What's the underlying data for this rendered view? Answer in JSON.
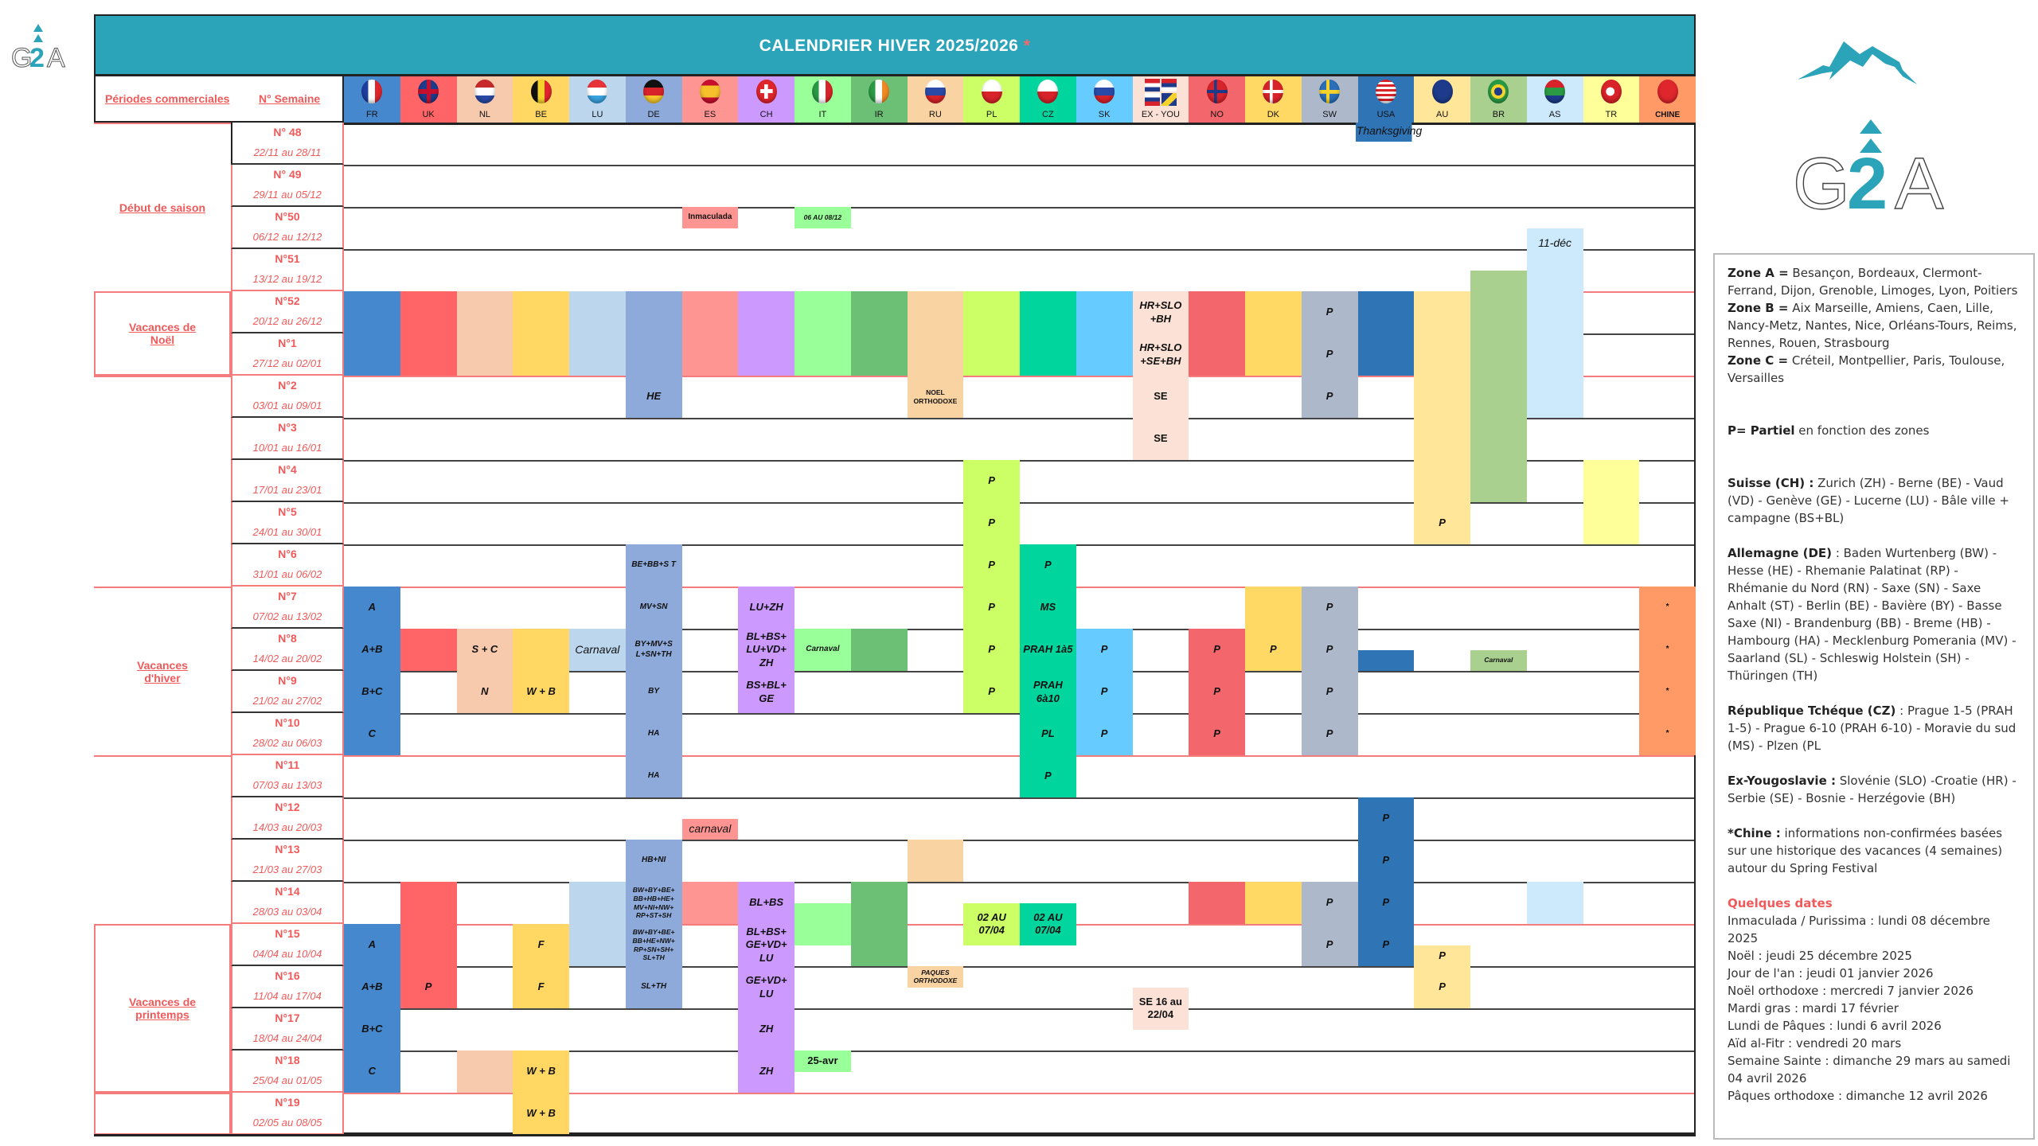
{
  "title": "CALENDRIER HIVER 2025/2026",
  "title_star": "*",
  "header": {
    "periods_label": "Périodes commerciales",
    "week_label": "N°  Semaine"
  },
  "logo_text": "G2A",
  "columns": [
    {
      "code": "FR",
      "color": "#4588cd"
    },
    {
      "code": "UK",
      "color": "#ff6566"
    },
    {
      "code": "NL",
      "color": "#f7c9ad"
    },
    {
      "code": "BE",
      "color": "#ffd762"
    },
    {
      "code": "LU",
      "color": "#bcd6ee"
    },
    {
      "code": "DE",
      "color": "#8eaadb"
    },
    {
      "code": "ES",
      "color": "#ff9592"
    },
    {
      "code": "CH",
      "color": "#cc99ff"
    },
    {
      "code": "IT",
      "color": "#99ff99"
    },
    {
      "code": "IR",
      "color": "#6cc076"
    },
    {
      "code": "RU",
      "color": "#fad3a2"
    },
    {
      "code": "PL",
      "color": "#ccff66"
    },
    {
      "code": "CZ",
      "color": "#00d59d"
    },
    {
      "code": "SK",
      "color": "#66ccff"
    },
    {
      "code": "EX - YOU",
      "color": "#fce2d6"
    },
    {
      "code": "NO",
      "color": "#f3666b"
    },
    {
      "code": "DK",
      "color": "#ffd964"
    },
    {
      "code": "SW",
      "color": "#adb9ca"
    },
    {
      "code": "USA",
      "color": "#2f74b5"
    },
    {
      "code": "AU",
      "color": "#ffe699"
    },
    {
      "code": "BR",
      "color": "#a9d08e"
    },
    {
      "code": "AS",
      "color": "#cdeafc"
    },
    {
      "code": "TR",
      "color": "#ffff99"
    },
    {
      "code": "CHINE",
      "color": "#ff9966"
    }
  ],
  "weeks": [
    {
      "no": "N° 48",
      "dates": "22/11 au 28/11"
    },
    {
      "no": "N° 49",
      "dates": "29/11 au 05/12"
    },
    {
      "no": "N°50",
      "dates": "06/12 au 12/12"
    },
    {
      "no": "N°51",
      "dates": "13/12 au 19/12"
    },
    {
      "no": "N°52",
      "dates": "20/12 au 26/12"
    },
    {
      "no": "N°1",
      "dates": "27/12 au 02/01"
    },
    {
      "no": "N°2",
      "dates": "03/01 au 09/01"
    },
    {
      "no": "N°3",
      "dates": "10/01 au 16/01"
    },
    {
      "no": "N°4",
      "dates": "17/01 au 23/01"
    },
    {
      "no": "N°5",
      "dates": "24/01 au 30/01"
    },
    {
      "no": "N°6",
      "dates": "31/01 au 06/02"
    },
    {
      "no": "N°7",
      "dates": "07/02 au 13/02"
    },
    {
      "no": "N°8",
      "dates": "14/02 au 20/02"
    },
    {
      "no": "N°9",
      "dates": "21/02 au 27/02"
    },
    {
      "no": "N°10",
      "dates": "28/02 au 06/03"
    },
    {
      "no": "N°11",
      "dates": "07/03 au 13/03"
    },
    {
      "no": "N°12",
      "dates": "14/03 au 20/03"
    },
    {
      "no": "N°13",
      "dates": "21/03 au 27/03"
    },
    {
      "no": "N°14",
      "dates": "28/03 au 03/04"
    },
    {
      "no": "N°15",
      "dates": "04/04 au 10/04"
    },
    {
      "no": "N°16",
      "dates": "11/04 au 17/04"
    },
    {
      "no": "N°17",
      "dates": "18/04 au 24/04"
    },
    {
      "no": "N°18",
      "dates": "25/04 au 01/05"
    },
    {
      "no": "N°19",
      "dates": "02/05 au 08/05"
    }
  ],
  "periods": [
    {
      "label": "Début de saison",
      "start": 0,
      "span": 4
    },
    {
      "label": "Vacances de Noël",
      "start": 4,
      "span": 2
    },
    {
      "label": "",
      "start": 6,
      "span": 5
    },
    {
      "label": "Vacances d'hiver",
      "start": 11,
      "span": 4
    },
    {
      "label": "",
      "start": 15,
      "span": 4
    },
    {
      "label": "Vacances de printemps",
      "start": 19,
      "span": 4
    },
    {
      "label": "",
      "start": 23,
      "span": 1
    }
  ],
  "blocks": [
    {
      "col": 18,
      "r": 0,
      "h": 0.45,
      "text": "Thanksgiving",
      "cls": "norm-italic"
    },
    {
      "col": 6,
      "r": 2,
      "h": 0.5,
      "text": "Inmaculada",
      "cls": "sm norm"
    },
    {
      "col": 8,
      "r": 2,
      "h": 0.5,
      "text": "06 AU 08/12",
      "cls": "xs"
    },
    {
      "col": 21,
      "r": 2.5,
      "h": 3.5,
      "text": "11-déc",
      "cls": "top"
    },
    {
      "col": 20,
      "r": 3.5,
      "h": 2.5,
      "text": ""
    },
    {
      "col": 0,
      "r": 4,
      "h": 2,
      "text": ""
    },
    {
      "col": 1,
      "r": 4,
      "h": 2,
      "text": ""
    },
    {
      "col": 2,
      "r": 4,
      "h": 2,
      "text": ""
    },
    {
      "col": 3,
      "r": 4,
      "h": 2,
      "text": ""
    },
    {
      "col": 4,
      "r": 4,
      "h": 2,
      "text": ""
    },
    {
      "col": 5,
      "r": 4,
      "h": 2,
      "text": ""
    },
    {
      "col": 6,
      "r": 4,
      "h": 2,
      "text": ""
    },
    {
      "col": 7,
      "r": 4,
      "h": 2,
      "text": ""
    },
    {
      "col": 8,
      "r": 4,
      "h": 2,
      "text": ""
    },
    {
      "col": 9,
      "r": 4,
      "h": 2,
      "text": ""
    },
    {
      "col": 10,
      "r": 4,
      "h": 3,
      "text": ""
    },
    {
      "col": 11,
      "r": 4,
      "h": 2,
      "text": ""
    },
    {
      "col": 12,
      "r": 4,
      "h": 2,
      "text": ""
    },
    {
      "col": 13,
      "r": 4,
      "h": 2,
      "text": ""
    },
    {
      "col": 14,
      "r": 4,
      "h": 1,
      "text": "HR+SLO +BH"
    },
    {
      "col": 14,
      "r": 5,
      "h": 1,
      "text": "HR+SLO +SE+BH"
    },
    {
      "col": 15,
      "r": 4,
      "h": 2,
      "text": ""
    },
    {
      "col": 16,
      "r": 4,
      "h": 2,
      "text": ""
    },
    {
      "col": 17,
      "r": 4,
      "h": 1,
      "text": "P"
    },
    {
      "col": 17,
      "r": 5,
      "h": 1,
      "text": "P"
    },
    {
      "col": 18,
      "r": 4,
      "h": 2,
      "text": ""
    },
    {
      "col": 19,
      "r": 4,
      "h": 6,
      "text": ""
    },
    {
      "col": 20,
      "r": 6,
      "h": 3,
      "text": ""
    },
    {
      "col": 21,
      "r": 6,
      "h": 1,
      "text": ""
    },
    {
      "col": 5,
      "r": 6,
      "h": 1,
      "text": "HE"
    },
    {
      "col": 10,
      "r": 6,
      "h": 1,
      "text": "NOEL ORTHODOXE",
      "cls": "xs norm"
    },
    {
      "col": 14,
      "r": 6,
      "h": 1,
      "text": "SE",
      "cls": "norm"
    },
    {
      "col": 17,
      "r": 6,
      "h": 1,
      "text": "P"
    },
    {
      "col": 14,
      "r": 7,
      "h": 1,
      "text": "SE",
      "cls": "norm"
    },
    {
      "col": 11,
      "r": 8,
      "h": 1,
      "text": "P"
    },
    {
      "col": 11,
      "r": 9,
      "h": 1,
      "text": "P"
    },
    {
      "col": 19,
      "r": 9,
      "h": 1,
      "text": "P",
      "overlay": true
    },
    {
      "col": 22,
      "r": 8,
      "h": 2,
      "text": ""
    },
    {
      "col": 5,
      "r": 10,
      "h": 1,
      "text": "BE+BB+S T",
      "cls": "sm"
    },
    {
      "col": 11,
      "r": 10,
      "h": 1,
      "text": "P"
    },
    {
      "col": 12,
      "r": 10,
      "h": 1,
      "text": "P"
    },
    {
      "col": 0,
      "r": 11,
      "h": 1,
      "text": "A"
    },
    {
      "col": 0,
      "r": 12,
      "h": 1,
      "text": "A+B"
    },
    {
      "col": 0,
      "r": 13,
      "h": 1,
      "text": "B+C"
    },
    {
      "col": 0,
      "r": 14,
      "h": 1,
      "text": "C"
    },
    {
      "col": 1,
      "r": 12,
      "h": 1,
      "text": ""
    },
    {
      "col": 2,
      "r": 12,
      "h": 1,
      "text": "S + C"
    },
    {
      "col": 2,
      "r": 13,
      "h": 1,
      "text": "N"
    },
    {
      "col": 3,
      "r": 12,
      "h": 1,
      "text": ""
    },
    {
      "col": 3,
      "r": 13,
      "h": 1,
      "text": "W + B"
    },
    {
      "col": 4,
      "r": 12,
      "h": 1,
      "text": "Carnaval",
      "cls": "norm-italic"
    },
    {
      "col": 5,
      "r": 11,
      "h": 1,
      "text": "MV+SN",
      "cls": "sm"
    },
    {
      "col": 5,
      "r": 12,
      "h": 1,
      "text": "BY+MV+S L+SN+TH",
      "cls": "sm"
    },
    {
      "col": 5,
      "r": 13,
      "h": 1,
      "text": "BY",
      "cls": "sm"
    },
    {
      "col": 5,
      "r": 14,
      "h": 1,
      "text": "HA",
      "cls": "sm"
    },
    {
      "col": 5,
      "r": 15,
      "h": 1,
      "text": "HA",
      "cls": "sm"
    },
    {
      "col": 7,
      "r": 11,
      "h": 1,
      "text": "LU+ZH"
    },
    {
      "col": 7,
      "r": 12,
      "h": 1,
      "text": "BL+BS+ LU+VD+ ZH"
    },
    {
      "col": 7,
      "r": 13,
      "h": 1,
      "text": "BS+BL+ GE"
    },
    {
      "col": 8,
      "r": 12,
      "h": 1,
      "text": "Carnaval",
      "cls": "sm"
    },
    {
      "col": 9,
      "r": 12,
      "h": 1,
      "text": ""
    },
    {
      "col": 11,
      "r": 11,
      "h": 1,
      "text": "P"
    },
    {
      "col": 11,
      "r": 12,
      "h": 1,
      "text": "P"
    },
    {
      "col": 11,
      "r": 13,
      "h": 1,
      "text": "P"
    },
    {
      "col": 12,
      "r": 11,
      "h": 1,
      "text": "MS"
    },
    {
      "col": 12,
      "r": 12,
      "h": 1,
      "text": "PRAH 1à5"
    },
    {
      "col": 12,
      "r": 13,
      "h": 1,
      "text": "PRAH 6à10"
    },
    {
      "col": 12,
      "r": 14,
      "h": 1,
      "text": "PL"
    },
    {
      "col": 12,
      "r": 15,
      "h": 1,
      "text": "P"
    },
    {
      "col": 13,
      "r": 12,
      "h": 1,
      "text": "P"
    },
    {
      "col": 13,
      "r": 13,
      "h": 1,
      "text": "P"
    },
    {
      "col": 13,
      "r": 14,
      "h": 1,
      "text": "P"
    },
    {
      "col": 15,
      "r": 12,
      "h": 1,
      "text": "P"
    },
    {
      "col": 15,
      "r": 13,
      "h": 1,
      "text": "P"
    },
    {
      "col": 15,
      "r": 14,
      "h": 1,
      "text": "P"
    },
    {
      "col": 16,
      "r": 11,
      "h": 1,
      "text": ""
    },
    {
      "col": 16,
      "r": 12,
      "h": 1,
      "text": "P"
    },
    {
      "col": 17,
      "r": 11,
      "h": 1,
      "text": "P"
    },
    {
      "col": 17,
      "r": 12,
      "h": 1,
      "text": "P"
    },
    {
      "col": 17,
      "r": 13,
      "h": 1,
      "text": "P"
    },
    {
      "col": 17,
      "r": 14,
      "h": 1,
      "text": "P"
    },
    {
      "col": 18,
      "r": 12.5,
      "h": 0.5,
      "text": ""
    },
    {
      "col": 20,
      "r": 12.5,
      "h": 0.5,
      "text": "Carnaval",
      "cls": "xs"
    },
    {
      "col": 23,
      "r": 11,
      "h": 4,
      "text": ""
    },
    {
      "col": 23,
      "r": 11,
      "h": 1,
      "text": "*",
      "cls": "sm norm",
      "nobg": true
    },
    {
      "col": 23,
      "r": 12,
      "h": 1,
      "text": "*",
      "cls": "sm norm",
      "nobg": true
    },
    {
      "col": 23,
      "r": 13,
      "h": 1,
      "text": "*",
      "cls": "sm norm",
      "nobg": true
    },
    {
      "col": 23,
      "r": 14,
      "h": 1,
      "text": "*",
      "cls": "sm norm",
      "nobg": true
    },
    {
      "col": 6,
      "r": 16.5,
      "h": 0.5,
      "text": "carnaval",
      "cls": "norm-italic"
    },
    {
      "col": 18,
      "r": 16,
      "h": 4,
      "text": ""
    },
    {
      "col": 18,
      "r": 16,
      "h": 1,
      "text": "P",
      "nobg": true
    },
    {
      "col": 18,
      "r": 17,
      "h": 1,
      "text": "P",
      "nobg": true
    },
    {
      "col": 18,
      "r": 18,
      "h": 1,
      "text": "P",
      "nobg": true
    },
    {
      "col": 18,
      "r": 19,
      "h": 1,
      "text": "P",
      "nobg": true
    },
    {
      "col": 5,
      "r": 17,
      "h": 1,
      "text": "HB+NI",
      "cls": "sm"
    },
    {
      "col": 10,
      "r": 17,
      "h": 1,
      "text": ""
    },
    {
      "col": 1,
      "r": 18,
      "h": 3,
      "text": ""
    },
    {
      "col": 1,
      "r": 20,
      "h": 1,
      "text": "P",
      "nobg": true
    },
    {
      "col": 4,
      "r": 18,
      "h": 2,
      "text": ""
    },
    {
      "col": 5,
      "r": 18,
      "h": 1,
      "text": "BW+BY+BE+ BB+HB+HE+ MV+NI+NW+ RP+ST+SH",
      "cls": "xs"
    },
    {
      "col": 5,
      "r": 19,
      "h": 1,
      "text": "BW+BY+BE+ BB+HE+NW+ RP+SN+SH+ SL+TH",
      "cls": "xs"
    },
    {
      "col": 6,
      "r": 18,
      "h": 1,
      "text": ""
    },
    {
      "col": 7,
      "r": 18,
      "h": 1,
      "text": "BL+BS"
    },
    {
      "col": 7,
      "r": 19,
      "h": 1,
      "text": "BL+BS+ GE+VD+ LU"
    },
    {
      "col": 8,
      "r": 18.5,
      "h": 1,
      "text": ""
    },
    {
      "col": 9,
      "r": 18,
      "h": 2,
      "text": ""
    },
    {
      "col": 11,
      "r": 18.5,
      "h": 1,
      "text": "02 AU 07/04"
    },
    {
      "col": 12,
      "r": 18.5,
      "h": 1,
      "text": "02 AU 07/04"
    },
    {
      "col": 15,
      "r": 18,
      "h": 1,
      "text": ""
    },
    {
      "col": 16,
      "r": 18,
      "h": 1,
      "text": ""
    },
    {
      "col": 17,
      "r": 18,
      "h": 2,
      "text": ""
    },
    {
      "col": 17,
      "r": 18,
      "h": 1,
      "text": "P",
      "nobg": true
    },
    {
      "col": 17,
      "r": 19,
      "h": 1,
      "text": "P",
      "nobg": true
    },
    {
      "col": 21,
      "r": 18,
      "h": 1,
      "text": ""
    },
    {
      "col": 0,
      "r": 19,
      "h": 1,
      "text": "A"
    },
    {
      "col": 3,
      "r": 19,
      "h": 1,
      "text": "F"
    },
    {
      "col": 19,
      "r": 19.5,
      "h": 0.5,
      "text": "P"
    },
    {
      "col": 0,
      "r": 20,
      "h": 1,
      "text": "A+B"
    },
    {
      "col": 3,
      "r": 20,
      "h": 1,
      "text": "F"
    },
    {
      "col": 5,
      "r": 20,
      "h": 1,
      "text": "SL+TH",
      "cls": "sm"
    },
    {
      "col": 7,
      "r": 20,
      "h": 1,
      "text": "GE+VD+ LU"
    },
    {
      "col": 10,
      "r": 20,
      "h": 0.5,
      "text": "PAQUES ORTHODOXE",
      "cls": "xs"
    },
    {
      "col": 14,
      "r": 20.5,
      "h": 1,
      "text": "SE 16 au 22/04",
      "cls": "norm"
    },
    {
      "col": 19,
      "r": 20,
      "h": 1,
      "text": "P"
    },
    {
      "col": 0,
      "r": 21,
      "h": 1,
      "text": "B+C"
    },
    {
      "col": 7,
      "r": 21,
      "h": 1,
      "text": "ZH"
    },
    {
      "col": 0,
      "r": 22,
      "h": 1,
      "text": "C"
    },
    {
      "col": 2,
      "r": 22,
      "h": 1,
      "text": ""
    },
    {
      "col": 3,
      "r": 22,
      "h": 1,
      "text": "W + B"
    },
    {
      "col": 7,
      "r": 22,
      "h": 1,
      "text": "ZH"
    },
    {
      "col": 8,
      "r": 22,
      "h": 0.5,
      "text": "25-avr",
      "cls": "norm"
    },
    {
      "col": 3,
      "r": 23,
      "h": 1,
      "text": "W + B"
    }
  ],
  "notes": {
    "zone_a_label": "Zone A =",
    "zone_a": " Besançon, Bordeaux, Clermont-Ferrand, Dijon, Grenoble, Limoges, Lyon, Poitiers",
    "zone_b_label": "Zone B =",
    "zone_b": " Aix Marseille, Amiens, Caen, Lille, Nancy-Metz, Nantes, Nice, Orléans-Tours, Reims, Rennes, Rouen, Strasbourg",
    "zone_c_label": "Zone C =",
    "zone_c": " Créteil, Montpellier, Paris, Toulouse, Versailles",
    "partiel_label": "P= Partiel",
    "partiel": " en fonction des zones",
    "ch_label": "Suisse (CH) :",
    "ch": " Zurich (ZH) - Berne (BE) - Vaud (VD) - Genève (GE) - Lucerne (LU) - Bâle ville + campagne (BS+BL)",
    "de_label": "Allemagne (DE)",
    "de": " : Baden Wurtenberg (BW) - Hesse (HE) - Rhemanie Palatinat (RP) - Rhémanie du Nord (RN) - Saxe (SN) - Saxe Anhalt (ST) - Berlin (BE) - Bavière (BY) - Basse Saxe (NI) - Brandenburg (BB) - Breme (HB) - Hambourg (HA) - Mecklenburg Pomerania (MV) - Saarland (SL) - Schleswig Holstein (SH) - Thüringen (TH)",
    "cz_label": "République Tchéque (CZ)",
    "cz": " : Prague 1-5 (PRAH 1-5) - Prague 6-10 (PRAH 6-10) - Moravie du sud (MS) - Plzen (PL",
    "yu_label": "Ex-Yougoslavie :",
    "yu": " Slovénie (SLO) -Croatie (HR) - Serbie (SE) - Bosnie - Herzégovie (BH)",
    "cn_label": "*Chine :",
    "cn": " informations non-confirmées basées sur une historique des vacances (4 semaines) autour du Spring Festival",
    "dates_title": "Quelques dates",
    "dates": [
      "Inmaculada / Purissima  : lundi 08 décembre 2025",
      "Noël : jeudi 25 décembre 2025",
      "Jour de l'an : jeudi 01 janvier 2026",
      "Noël orthodoxe : mercredi 7 janvier 2026",
      "Mardi gras : mardi 17 février",
      "Lundi de Pâques : lundi 6 avril 2026",
      "Aïd al-Fitr : vendredi 20 mars",
      "Semaine Sainte : dimanche 29 mars au samedi 04 avril 2026",
      "Pâques orthodoxe : dimanche 12 avril 2026"
    ]
  }
}
